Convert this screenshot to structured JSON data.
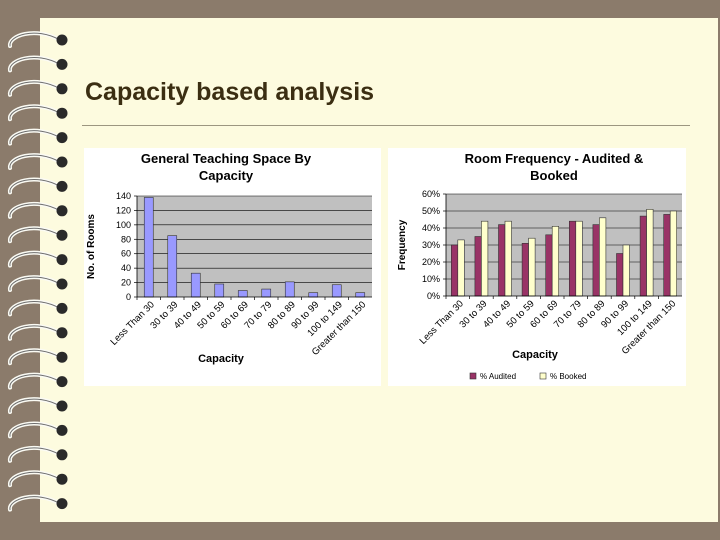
{
  "slide": {
    "title": "Capacity based analysis",
    "colors": {
      "background": "#8b7b6b",
      "paper": "#fdfbdf",
      "title": "#3b2e12"
    },
    "binding_icon": "spiral-binding-ring-icon"
  },
  "chart_data": [
    {
      "type": "bar",
      "title": "General Teaching Space By Capacity",
      "title_lines": [
        "General Teaching Space By",
        "Capacity"
      ],
      "xlabel": "Capacity",
      "ylabel": "No. of Rooms",
      "categories": [
        "Less Than 30",
        "30 to 39",
        "40 to 49",
        "50 to 59",
        "60 to 69",
        "70 to 79",
        "80 to 89",
        "90 to 99",
        "100 to 149",
        "Greater than 150"
      ],
      "values": [
        138,
        85,
        33,
        18,
        9,
        11,
        21,
        6,
        17,
        6
      ],
      "ylim": [
        0,
        140
      ],
      "yticks": [
        "0",
        "20",
        "40",
        "60",
        "80",
        "100",
        "120",
        "140"
      ],
      "bar_color": "#9999ff",
      "plot_background": "#c0c0c0",
      "grid": true
    },
    {
      "type": "bar",
      "title": "Room Frequency - Audited & Booked",
      "title_lines": [
        "Room Frequency - Audited &",
        "Booked"
      ],
      "xlabel": "Capacity",
      "ylabel": "Frequency",
      "categories": [
        "Less Than 30",
        "30 to 39",
        "40 to 49",
        "50 to 59",
        "60 to 69",
        "70 to 79",
        "80 to 89",
        "90 to 99",
        "100 to 149",
        "Greater than 150"
      ],
      "series": [
        {
          "name": "% Audited",
          "values": [
            30,
            35,
            42,
            31,
            36,
            44,
            42,
            25,
            47,
            48
          ],
          "color": "#993366"
        },
        {
          "name": "% Booked",
          "values": [
            33,
            44,
            44,
            34,
            41,
            44,
            46,
            30,
            51,
            50
          ],
          "color": "#ffffcc"
        }
      ],
      "ylim": [
        0,
        60
      ],
      "yticks": [
        "0%",
        "10%",
        "20%",
        "30%",
        "40%",
        "50%",
        "60%"
      ],
      "legend_position": "bottom",
      "plot_background": "#c0c0c0",
      "grid": true
    }
  ]
}
